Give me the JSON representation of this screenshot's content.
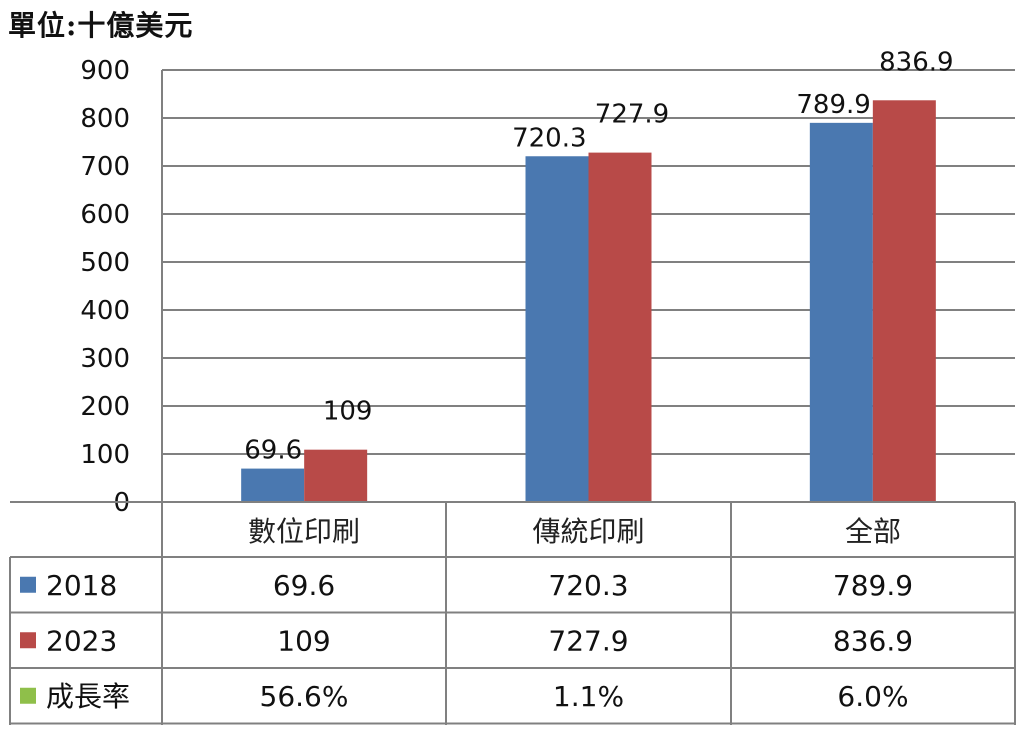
{
  "unit_label": "單位:十億美元",
  "colors": {
    "s2018": "#4a78b0",
    "s2023": "#b84a48",
    "growth": "#8fbf4a",
    "grid": "#808080"
  },
  "chart_data": {
    "type": "bar",
    "categories": [
      "數位印刷",
      "傳統印刷",
      "全部"
    ],
    "series": [
      {
        "name": "2018",
        "values": [
          69.6,
          720.3,
          789.9
        ],
        "labels": [
          "69.6",
          "720.3",
          "789.9"
        ]
      },
      {
        "name": "2023",
        "values": [
          109,
          727.9,
          836.9
        ],
        "labels": [
          "109",
          "727.9",
          "836.9"
        ]
      }
    ],
    "ylim": [
      0,
      900
    ],
    "yticks": [
      0,
      100,
      200,
      300,
      400,
      500,
      600,
      700,
      800,
      900
    ],
    "grid": true,
    "data_table": {
      "rows": [
        {
          "name": "2018",
          "cells": [
            "69.6",
            "720.3",
            "789.9"
          ]
        },
        {
          "name": "2023",
          "cells": [
            "109",
            "727.9",
            "836.9"
          ]
        },
        {
          "name": "成長率",
          "cells": [
            "56.6%",
            "1.1%",
            "6.0%"
          ]
        }
      ]
    }
  }
}
